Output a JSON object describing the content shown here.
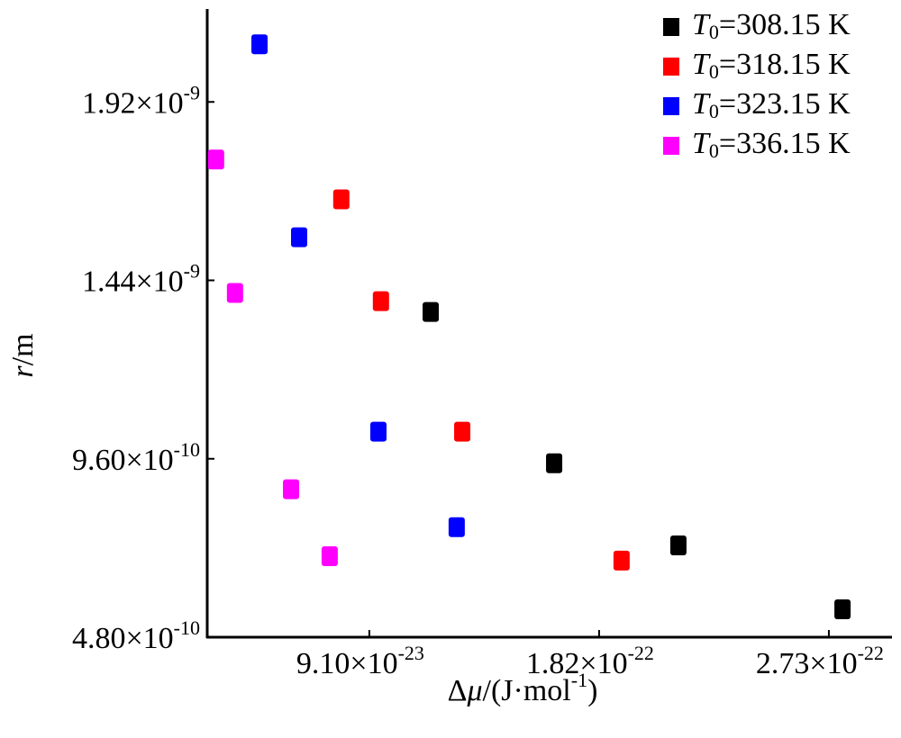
{
  "chart_data": {
    "type": "scatter",
    "x_label": "Δμ/(J·mol-1)",
    "y_label": "r/m",
    "xlim": [
      2.68e-23,
      2.98e-22
    ],
    "ylim": [
      4.8e-10,
      2.17e-09
    ],
    "xticks": [
      {
        "value": 9.1e-23,
        "label": "9.10×10-23"
      },
      {
        "value": 1.82e-22,
        "label": "1.82×10-22"
      },
      {
        "value": 2.73e-22,
        "label": "2.73×10-22"
      }
    ],
    "yticks": [
      {
        "value": 4.8e-10,
        "label": "4.80×10-10"
      },
      {
        "value": 9.6e-10,
        "label": "9.60×10-10"
      },
      {
        "value": 1.44e-09,
        "label": "1.44×10-9"
      },
      {
        "value": 1.92e-09,
        "label": "1.92×10-9"
      }
    ],
    "legend": "upper right",
    "series": [
      {
        "name": "T0=308.15 K",
        "color": "#000000",
        "x": [
          1.153e-22,
          1.642e-22,
          2.134e-22,
          2.784e-22
        ],
        "values": [
          1.355e-09,
          9.48e-10,
          7.27e-10,
          5.55e-10
        ]
      },
      {
        "name": "T0=318.15 K",
        "color": "#ff0000",
        "x": [
          7.99e-23,
          9.56e-23,
          1.278e-22,
          1.909e-22
        ],
        "values": [
          1.658e-09,
          1.384e-09,
          1.033e-09,
          6.86e-10
        ]
      },
      {
        "name": "T0=323.15 K",
        "color": "#0000ff",
        "x": [
          4.75e-23,
          6.32e-23,
          9.46e-23,
          1.256e-22
        ],
        "values": [
          2.075e-09,
          1.556e-09,
          1.033e-09,
          7.76e-10
        ]
      },
      {
        "name": "T0=336.15 K",
        "color": "#ff00ff",
        "x": [
          3.03e-23,
          3.78e-23,
          6e-23,
          7.53e-23
        ],
        "values": [
          1.765e-09,
          1.406e-09,
          8.78e-10,
          6.98e-10
        ]
      }
    ]
  }
}
